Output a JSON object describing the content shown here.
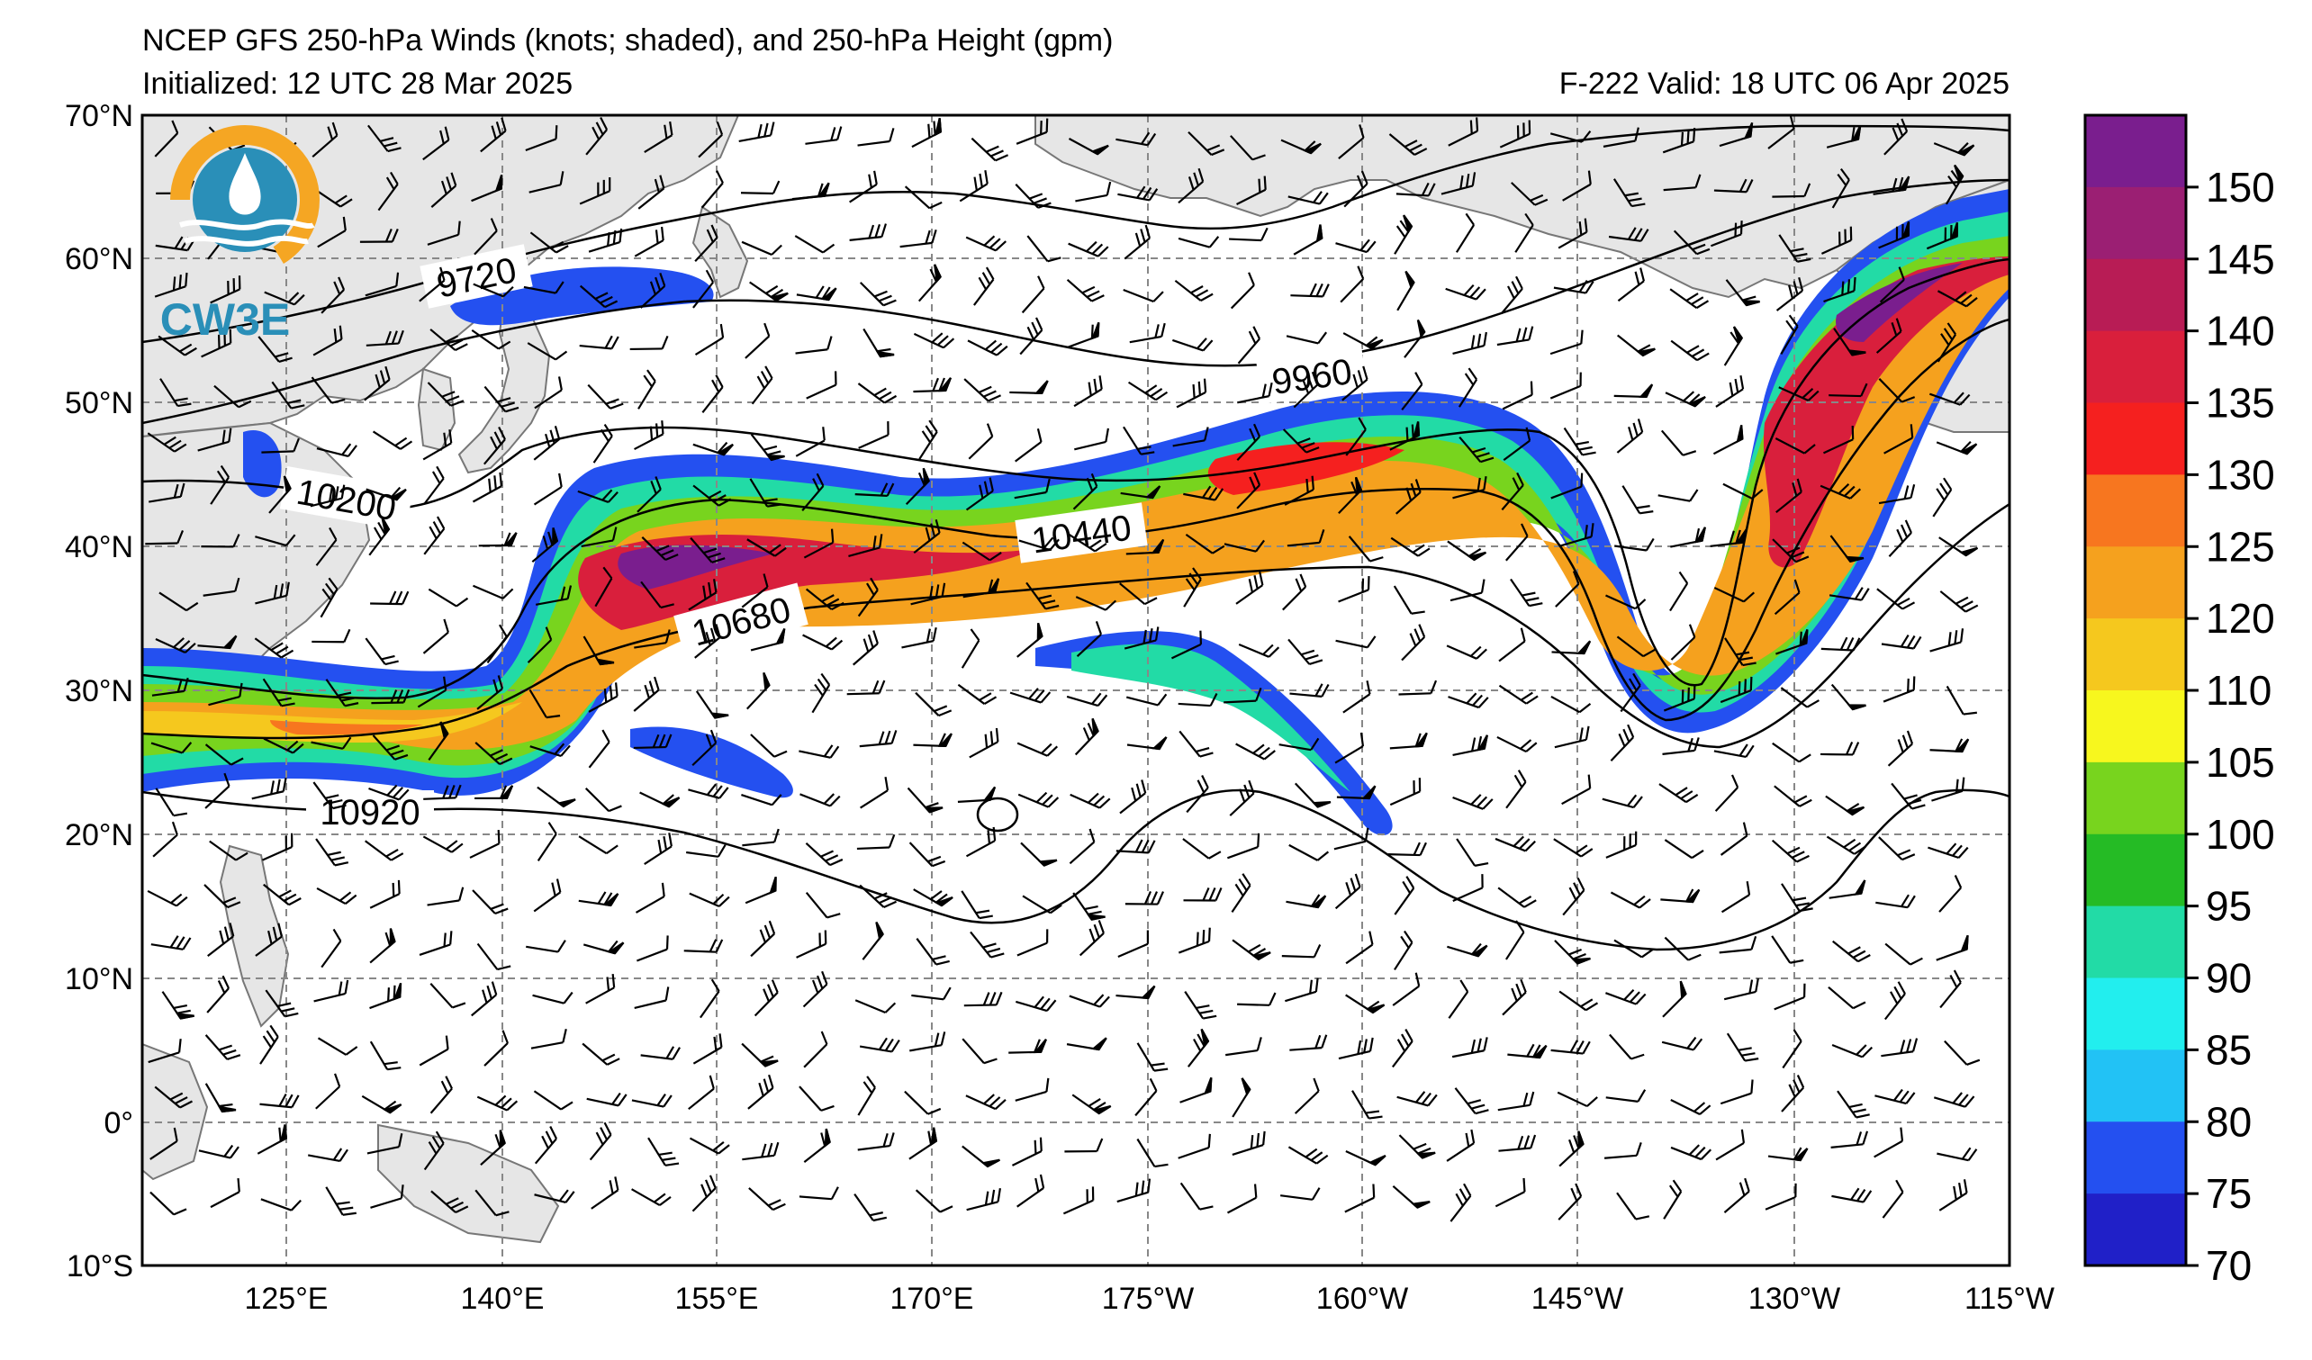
{
  "header": {
    "title": "NCEP GFS 250-hPa Winds (knots; shaded), and 250-hPa Height (gpm)",
    "initialized": "Initialized: 12 UTC 28 Mar 2025",
    "forecast": "F-222  Valid: 18 UTC 06 Apr 2025"
  },
  "logo": {
    "text": "CW3E",
    "colors": {
      "orange": "#f5a623",
      "blue": "#2a8fb8"
    }
  },
  "map": {
    "lat_labels": [
      "70°N",
      "60°N",
      "50°N",
      "40°N",
      "30°N",
      "20°N",
      "10°N",
      "0°",
      "10°S"
    ],
    "lon_labels": [
      "125°E",
      "140°E",
      "155°E",
      "170°E",
      "175°W",
      "160°W",
      "145°W",
      "130°W",
      "115°W"
    ],
    "contour_labels": [
      "9720",
      "9960",
      "10200",
      "10440",
      "10680",
      "10920"
    ],
    "land_color": "#e6e6e6",
    "coast_color": "#777777"
  },
  "colorbar": {
    "ticks": [
      "150",
      "145",
      "140",
      "135",
      "130",
      "125",
      "120",
      "110",
      "105",
      "100",
      "95",
      "90",
      "85",
      "80",
      "75",
      "70"
    ],
    "colors": [
      "#7a1e8e",
      "#9b1f73",
      "#b81c55",
      "#d91f3c",
      "#f5201f",
      "#f7761f",
      "#f5a11e",
      "#f5c81e",
      "#f7f71e",
      "#78d41e",
      "#25bb25",
      "#22dba6",
      "#22eeee",
      "#22c2f5",
      "#2450f0",
      "#2020c8"
    ]
  }
}
